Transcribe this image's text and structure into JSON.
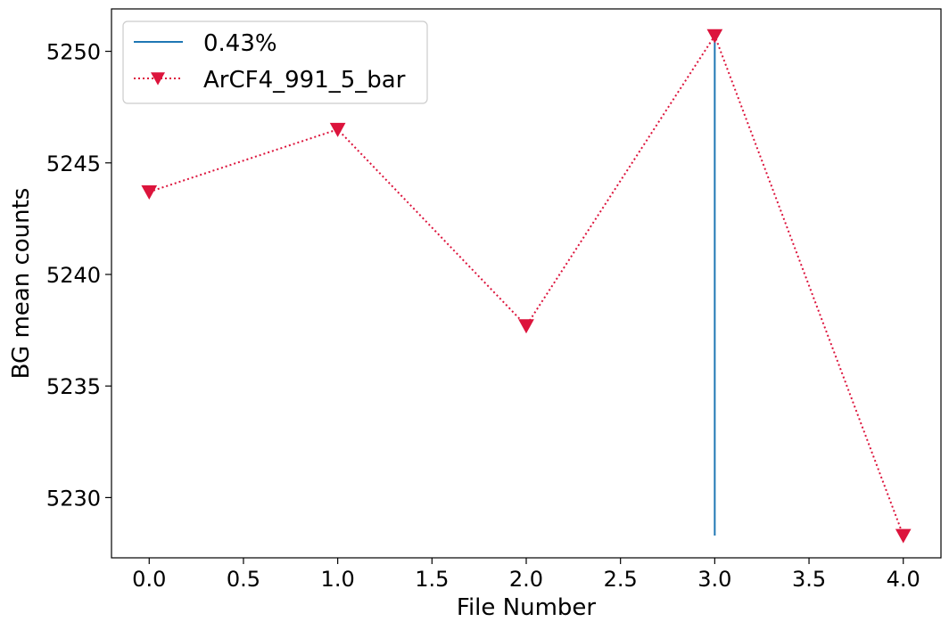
{
  "chart_data": {
    "type": "line",
    "xlabel": "File Number",
    "ylabel": "BG mean counts",
    "xlim": [
      -0.2,
      4.2
    ],
    "ylim": [
      5227.3,
      5251.9
    ],
    "xticks": [
      0.0,
      0.5,
      1.0,
      1.5,
      2.0,
      2.5,
      3.0,
      3.5,
      4.0
    ],
    "xtick_labels": [
      "0.0",
      "0.5",
      "1.0",
      "1.5",
      "2.0",
      "2.5",
      "3.0",
      "3.5",
      "4.0"
    ],
    "yticks": [
      5230,
      5235,
      5240,
      5245,
      5250
    ],
    "ytick_labels": [
      "5230",
      "5235",
      "5240",
      "5245",
      "5250"
    ],
    "grid": false,
    "legend_position": "top-left",
    "series": [
      {
        "name": "ArCF4_991_5_bar",
        "style": "dotted-line-with-down-triangle-markers",
        "color": "#dc143c",
        "x": [
          0,
          1,
          2,
          3,
          4
        ],
        "y": [
          5243.7,
          5246.5,
          5237.7,
          5250.7,
          5228.3
        ]
      }
    ],
    "vlines": [
      {
        "name": "0.43%",
        "color": "#1f77b4",
        "x": 3,
        "ymin": 5228.3,
        "ymax": 5250.7
      }
    ]
  }
}
